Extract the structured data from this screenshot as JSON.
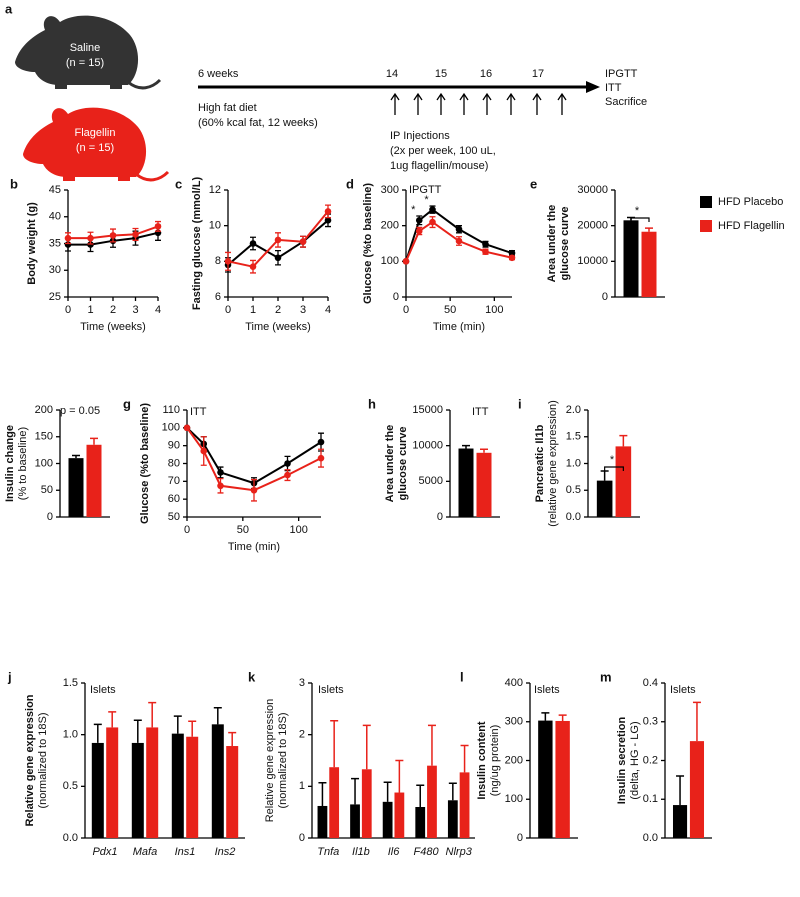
{
  "schematic": {
    "label": "a",
    "groups": [
      {
        "name": "Saline",
        "n": "(n = 15)"
      },
      {
        "name": "Flagellin",
        "n": "(n = 15)"
      }
    ],
    "timeline": {
      "start": "6 weeks",
      "weeks": [
        "14",
        "15",
        "16",
        "17"
      ],
      "end": [
        "IPGTT",
        "ITT",
        "Sacrifice"
      ]
    },
    "diet": [
      "High fat diet",
      "(60% kcal fat, 12 weeks)"
    ],
    "injections": [
      "IP Injections",
      "(2x per week, 100 uL,",
      "1ug flagellin/mouse)"
    ]
  },
  "chart_data": [
    {
      "panel": "b",
      "type": "line",
      "ylabel": [
        "Body weight (g)"
      ],
      "xlabel": "Time (weeks)",
      "x": [
        0,
        1,
        2,
        3,
        4
      ],
      "xlim": [
        0,
        4
      ],
      "xticks": [
        0,
        1,
        2,
        3,
        4
      ],
      "ylim": [
        25,
        45
      ],
      "yticks": [
        25,
        30,
        35,
        40,
        45
      ],
      "series": [
        {
          "color": "#000000",
          "values": [
            34.8,
            34.8,
            35.5,
            36,
            37
          ],
          "errors": [
            1.2,
            1.3,
            1.2,
            1.3,
            1.4
          ]
        },
        {
          "color": "#e8221a",
          "values": [
            36,
            36,
            36.5,
            36.7,
            38.2
          ],
          "errors": [
            1.0,
            1.1,
            1.2,
            1.1,
            0.9
          ]
        }
      ]
    },
    {
      "panel": "c",
      "type": "line",
      "ylabel": [
        "Fasting glucose (mmol/L)"
      ],
      "xlabel": "Time (weeks)",
      "x": [
        0,
        1,
        2,
        3,
        4
      ],
      "xlim": [
        0,
        4
      ],
      "xticks": [
        0,
        1,
        2,
        3,
        4
      ],
      "ylim": [
        6,
        12
      ],
      "yticks": [
        6,
        8,
        10,
        12
      ],
      "series": [
        {
          "color": "#000000",
          "values": [
            7.8,
            9,
            8.2,
            9.1,
            10.3
          ],
          "errors": [
            0.4,
            0.35,
            0.4,
            0.3,
            0.35
          ]
        },
        {
          "color": "#e8221a",
          "values": [
            8,
            7.7,
            9.2,
            9.1,
            10.8
          ],
          "errors": [
            0.5,
            0.35,
            0.4,
            0.3,
            0.35
          ]
        }
      ]
    },
    {
      "panel": "d",
      "type": "line",
      "ylabel": [
        "Glucose (%to baseline)"
      ],
      "xlabel": "Time (min)",
      "x": [
        0,
        15,
        30,
        60,
        90,
        120
      ],
      "xlim": [
        0,
        120
      ],
      "xticks": [
        0,
        50,
        100
      ],
      "ylim": [
        0,
        300
      ],
      "yticks": [
        0,
        100,
        200,
        300
      ],
      "annotations": [
        "IPGTT",
        "*",
        "*"
      ],
      "series": [
        {
          "color": "#000000",
          "values": [
            100,
            215,
            245,
            190,
            148,
            123
          ],
          "errors": [
            0,
            12,
            10,
            10,
            8,
            7
          ]
        },
        {
          "color": "#e8221a",
          "values": [
            100,
            185,
            210,
            157,
            127,
            110
          ],
          "errors": [
            0,
            10,
            15,
            12,
            7,
            5
          ]
        }
      ]
    },
    {
      "panel": "e",
      "type": "bar",
      "ylabel": [
        "Area under the",
        "glucose curve"
      ],
      "legend": "right",
      "categories": [
        null
      ],
      "ylim": [
        0,
        30000
      ],
      "yticks": [
        0,
        10000,
        20000,
        30000
      ],
      "annotations": [
        "*"
      ],
      "series": [
        {
          "name": "HFD Placebo",
          "color": "#000000",
          "values": [
            21500
          ],
          "errors": [
            800
          ]
        },
        {
          "name": "HFD Flagellin",
          "color": "#e8221a",
          "values": [
            18300
          ],
          "errors": [
            1000
          ]
        }
      ]
    },
    {
      "panel": "f",
      "type": "bar",
      "ylabel": [
        "Insulin change",
        "(% to baseline)"
      ],
      "categories": [
        null
      ],
      "ylim": [
        0,
        200
      ],
      "yticks": [
        0,
        50,
        100,
        150,
        200
      ],
      "annotations": [
        "p = 0.05"
      ],
      "series": [
        {
          "color": "#000000",
          "values": [
            110
          ],
          "errors": [
            5
          ]
        },
        {
          "color": "#e8221a",
          "values": [
            135
          ],
          "errors": [
            12
          ]
        }
      ]
    },
    {
      "panel": "g",
      "type": "line",
      "ylabel": [
        "Glucose (%to baseline)"
      ],
      "xlabel": "Time (min)",
      "x": [
        0,
        15,
        30,
        60,
        90,
        120
      ],
      "xlim": [
        0,
        120
      ],
      "xticks": [
        0,
        50,
        100
      ],
      "ylim": [
        50,
        110
      ],
      "yticks": [
        50,
        60,
        70,
        80,
        90,
        100,
        110
      ],
      "annotations": [
        "ITT"
      ],
      "series": [
        {
          "color": "#000000",
          "values": [
            100,
            91,
            75,
            69,
            80,
            92
          ],
          "errors": [
            0,
            4,
            3,
            3,
            4,
            5
          ]
        },
        {
          "color": "#e8221a",
          "values": [
            100,
            87,
            67.5,
            65,
            73.5,
            83
          ],
          "errors": [
            0,
            8,
            4,
            6,
            3,
            5
          ]
        }
      ]
    },
    {
      "panel": "h",
      "type": "bar",
      "ylabel": [
        "Area under the",
        "glucose curve"
      ],
      "categories": [
        null
      ],
      "ylim": [
        0,
        15000
      ],
      "yticks": [
        0,
        5000,
        10000,
        15000
      ],
      "annotations": [
        "ITT"
      ],
      "series": [
        {
          "color": "#000000",
          "values": [
            9600
          ],
          "errors": [
            400
          ]
        },
        {
          "color": "#e8221a",
          "values": [
            9000
          ],
          "errors": [
            500
          ]
        }
      ]
    },
    {
      "panel": "i",
      "type": "bar",
      "ylabel": [
        "Pancreatic Il1b",
        "(relative gene expression)"
      ],
      "categories": [
        null
      ],
      "ylim": [
        0,
        2
      ],
      "yticks": [
        {
          "value": 0,
          "label": "0.0"
        },
        0.5,
        {
          "value": 1,
          "label": "1.0"
        },
        1.5,
        {
          "value": 2,
          "label": "2.0"
        }
      ],
      "annotations": [
        "*"
      ],
      "series": [
        {
          "color": "#000000",
          "values": [
            0.68
          ],
          "errors": [
            0.18
          ]
        },
        {
          "color": "#e8221a",
          "values": [
            1.32
          ],
          "errors": [
            0.2
          ]
        }
      ]
    },
    {
      "panel": "j",
      "type": "bar",
      "ylabel": [
        "Relative gene expression",
        "(normalized to 18S)"
      ],
      "categories": [
        "Pdx1",
        "Mafa",
        "Ins1",
        "Ins2"
      ],
      "ylim": [
        0,
        1.5
      ],
      "yticks": [
        {
          "value": 0,
          "label": "0.0"
        },
        0.5,
        {
          "value": 1,
          "label": "1.0"
        },
        1.5
      ],
      "annotations": [
        "Islets"
      ],
      "series": [
        {
          "color": "#000000",
          "values": [
            0.92,
            0.92,
            1.01,
            1.1
          ],
          "errors": [
            0.18,
            0.22,
            0.17,
            0.16
          ]
        },
        {
          "color": "#e8221a",
          "values": [
            1.07,
            1.07,
            0.98,
            0.89
          ],
          "errors": [
            0.15,
            0.24,
            0.15,
            0.13
          ]
        }
      ]
    },
    {
      "panel": "k",
      "type": "bar",
      "ylabel": [
        "Relative gene expression",
        "(normalized to 18S)"
      ],
      "categories": [
        "Tnfa",
        "Il1b",
        "Il6",
        "F480",
        "Nlrp3"
      ],
      "ylim": [
        0,
        3
      ],
      "yticks": [
        0,
        1,
        2,
        3
      ],
      "annotations": [
        "Islets"
      ],
      "series": [
        {
          "color": "#000000",
          "values": [
            0.62,
            0.65,
            0.7,
            0.6,
            0.73
          ],
          "errors": [
            0.45,
            0.5,
            0.38,
            0.42,
            0.33
          ]
        },
        {
          "color": "#e8221a",
          "values": [
            1.37,
            1.33,
            0.88,
            1.4,
            1.27
          ],
          "errors": [
            0.9,
            0.85,
            0.62,
            0.78,
            0.52
          ]
        }
      ]
    },
    {
      "panel": "l",
      "type": "bar",
      "ylabel": [
        "Insulin content",
        "(ng/ug protein)"
      ],
      "categories": [
        null
      ],
      "ylim": [
        0,
        400
      ],
      "yticks": [
        0,
        100,
        200,
        300,
        400
      ],
      "annotations": [
        "Islets"
      ],
      "series": [
        {
          "color": "#000000",
          "values": [
            303
          ],
          "errors": [
            20
          ]
        },
        {
          "color": "#e8221a",
          "values": [
            302
          ],
          "errors": [
            15
          ]
        }
      ]
    },
    {
      "panel": "m",
      "type": "bar",
      "ylabel": [
        "Insulin secretion",
        "(delta, HG - LG)"
      ],
      "categories": [
        null
      ],
      "ylim": [
        0,
        0.4
      ],
      "yticks": [
        {
          "value": 0,
          "label": "0.0"
        },
        0.1,
        0.2,
        0.3,
        0.4
      ],
      "annotations": [
        "Islets"
      ],
      "series": [
        {
          "color": "#000000",
          "values": [
            0.085
          ],
          "errors": [
            0.075
          ]
        },
        {
          "color": "#e8221a",
          "values": [
            0.25
          ],
          "errors": [
            0.1
          ]
        }
      ]
    }
  ]
}
